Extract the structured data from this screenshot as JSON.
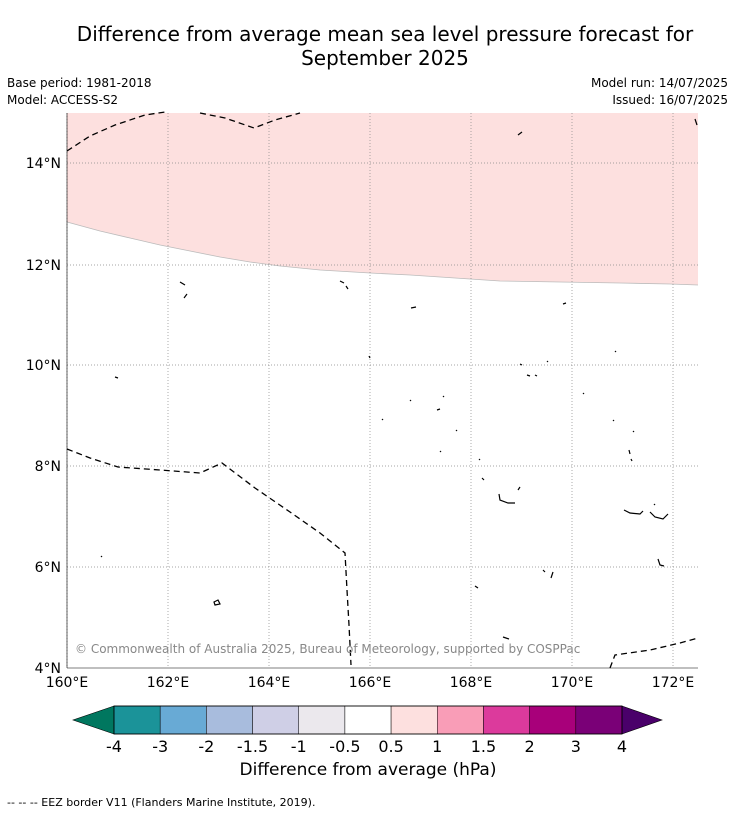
{
  "title": {
    "line1": "Difference from average mean sea level pressure forecast for",
    "line2": "September 2025"
  },
  "meta": {
    "base_period": "Base period: 1981-2018",
    "model": "Model: ACCESS-S2",
    "model_run": "Model run: 14/07/2025",
    "issued": "Issued: 16/07/2025"
  },
  "map": {
    "lon_ticks": [
      "160°E",
      "162°E",
      "164°E",
      "166°E",
      "168°E",
      "170°E",
      "172°E"
    ],
    "lat_ticks": [
      "4°N",
      "6°N",
      "8°N",
      "10°N",
      "12°N",
      "14°N"
    ],
    "copyright": "© Commonwealth of Australia 2025, Bureau of Meteorology, supported by COSPPac",
    "anomaly_band": "0.5 to 1",
    "colors": {
      "band_0_5_to_1": "#fde0df",
      "grid": "#888888",
      "coast": "#000000"
    }
  },
  "colorbar": {
    "label": "Difference from average (hPa)",
    "tick_labels": [
      "-4",
      "-3",
      "-2",
      "-1.5",
      "-1",
      "-0.5",
      "0.5",
      "1",
      "1.5",
      "2",
      "3",
      "4"
    ],
    "low_extend_color": "#00775f",
    "high_extend_color": "#4a006a",
    "bin_colors": [
      "#1b9399",
      "#68aad5",
      "#a8bcdd",
      "#cfcfe6",
      "#ebe8ed",
      "#ffffff",
      "#fde0df",
      "#f99db7",
      "#dc3a9c",
      "#a8007a",
      "#7a0077"
    ]
  },
  "footnote": "--  --  -- EEZ border V11 (Flanders Marine Institute, 2019)."
}
